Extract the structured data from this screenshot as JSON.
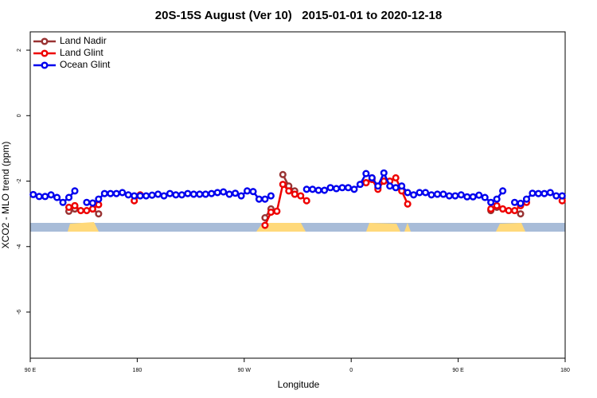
{
  "chart_data": {
    "type": "line",
    "title": "20S-15S August (Ver 10)   2015-01-01 to 2020-12-18",
    "x_label": "Longitude",
    "y_label": "XCO2 - MLO trend (ppm)",
    "xlim": [
      90,
      540
    ],
    "xticks": [
      {
        "value": 90,
        "label": "90 E"
      },
      180,
      {
        "value": 270,
        "label": "90 W"
      },
      {
        "value": 360,
        "label": "0"
      },
      {
        "value": 450,
        "label": "90 E"
      },
      {
        "value": 540,
        "label": "180"
      }
    ],
    "ylim": [
      -7.41,
      2.56
    ],
    "yticks": [
      2,
      0,
      -2,
      -4,
      -6
    ],
    "legend": "top-left",
    "x": [
      92.5,
      97.5,
      102.5,
      107.5,
      112.5,
      117.5,
      122.5,
      127.5,
      132.5,
      137.5,
      142.5,
      147.5,
      152.5,
      157.5,
      162.5,
      167.5,
      172.5,
      177.5,
      182.5,
      187.5,
      192.5,
      197.5,
      202.5,
      207.5,
      212.5,
      217.5,
      222.5,
      227.5,
      232.5,
      237.5,
      242.5,
      247.5,
      252.5,
      257.5,
      262.5,
      267.5,
      272.5,
      277.5,
      282.5,
      287.5,
      292.5,
      297.5,
      302.5,
      307.5,
      312.5,
      317.5,
      322.5,
      327.5,
      332.5,
      337.5,
      342.5,
      347.5,
      352.5,
      357.5,
      362.5,
      367.5,
      372.5,
      377.5,
      382.5,
      387.5,
      392.5,
      397.5,
      402.5,
      407.5,
      412.5,
      417.5,
      422.5,
      427.5,
      432.5,
      437.5,
      442.5,
      447.5,
      452.5,
      457.5,
      462.5,
      467.5,
      472.5,
      477.5,
      482.5,
      487.5,
      492.5,
      497.5,
      502.5,
      507.5,
      512.5,
      517.5,
      522.5,
      527.5,
      532.5,
      537.5
    ],
    "series": [
      {
        "name": "Land Nadir",
        "color": "#993333",
        "values": [
          null,
          null,
          null,
          null,
          null,
          null,
          -2.92,
          -2.85,
          null,
          null,
          -2.85,
          -3.0,
          null,
          null,
          null,
          null,
          null,
          null,
          null,
          null,
          null,
          null,
          null,
          null,
          null,
          null,
          null,
          null,
          null,
          null,
          null,
          null,
          null,
          null,
          null,
          null,
          null,
          null,
          null,
          -3.12,
          -2.85,
          null,
          -1.8,
          -2.15,
          -2.3,
          null,
          null,
          null,
          null,
          null,
          null,
          null,
          null,
          null,
          null,
          null,
          -2.05,
          -1.9,
          -2.2,
          -2.0,
          null,
          null,
          null,
          null,
          null,
          null,
          null,
          null,
          null,
          null,
          null,
          null,
          null,
          null,
          null,
          null,
          null,
          -2.9,
          -2.8,
          null,
          null,
          null,
          -3.0,
          null,
          null,
          null,
          null,
          null,
          null,
          null
        ]
      },
      {
        "name": "Land Glint",
        "color": "#ee0000",
        "values": [
          null,
          null,
          null,
          null,
          null,
          null,
          -2.8,
          -2.75,
          -2.9,
          -2.9,
          -2.85,
          -2.72,
          null,
          null,
          null,
          null,
          null,
          -2.6,
          -2.42,
          null,
          null,
          null,
          null,
          null,
          null,
          null,
          null,
          null,
          null,
          null,
          null,
          null,
          null,
          null,
          null,
          null,
          null,
          null,
          null,
          -3.35,
          -2.95,
          -2.92,
          -2.1,
          -2.3,
          -2.4,
          -2.45,
          -2.6,
          null,
          null,
          null,
          null,
          null,
          null,
          null,
          null,
          null,
          -2.05,
          -1.95,
          -2.25,
          -2.0,
          -2.0,
          -1.9,
          -2.3,
          -2.7,
          null,
          null,
          null,
          null,
          null,
          null,
          null,
          null,
          null,
          null,
          null,
          null,
          null,
          -2.85,
          -2.75,
          -2.85,
          -2.9,
          -2.9,
          -2.75,
          -2.65,
          null,
          null,
          null,
          null,
          null,
          -2.6
        ]
      },
      {
        "name": "Ocean Glint",
        "color": "#0000ee",
        "values": [
          -2.41,
          -2.47,
          -2.47,
          -2.42,
          -2.5,
          -2.65,
          -2.5,
          -2.3,
          null,
          -2.65,
          -2.67,
          -2.55,
          -2.38,
          -2.38,
          -2.38,
          -2.35,
          -2.42,
          -2.45,
          -2.45,
          -2.45,
          -2.43,
          -2.4,
          -2.45,
          -2.38,
          -2.42,
          -2.42,
          -2.38,
          -2.4,
          -2.4,
          -2.4,
          -2.38,
          -2.35,
          -2.33,
          -2.4,
          -2.37,
          -2.45,
          -2.3,
          -2.32,
          -2.55,
          -2.55,
          -2.45,
          null,
          null,
          null,
          null,
          null,
          -2.25,
          -2.25,
          -2.28,
          -2.28,
          -2.2,
          -2.23,
          -2.2,
          -2.2,
          -2.25,
          -2.1,
          -1.77,
          -1.9,
          -2.15,
          -1.75,
          -2.15,
          -2.2,
          -2.15,
          -2.35,
          -2.42,
          -2.35,
          -2.35,
          -2.42,
          -2.4,
          -2.4,
          -2.45,
          -2.45,
          -2.42,
          -2.48,
          -2.48,
          -2.43,
          -2.5,
          -2.65,
          -2.55,
          -2.3,
          null,
          -2.65,
          -2.68,
          -2.55,
          -2.37,
          -2.38,
          -2.38,
          -2.35,
          -2.45,
          -2.45
        ]
      }
    ]
  }
}
